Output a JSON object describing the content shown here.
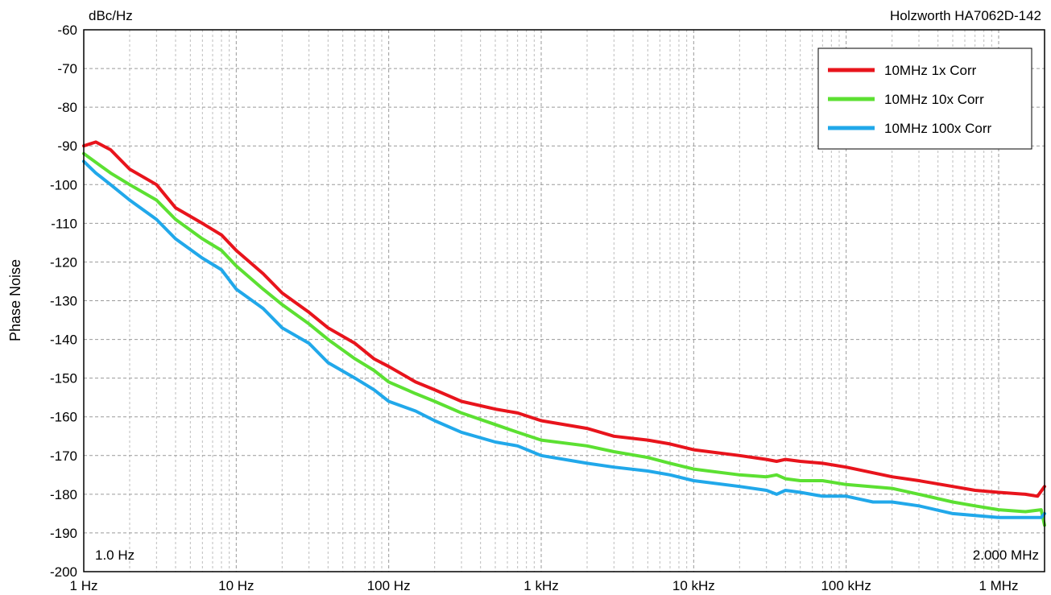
{
  "header": {
    "unit": "dBc/Hz",
    "instrument": "Holzworth HA7062D-142"
  },
  "annotations": {
    "start_freq": "1.0 Hz",
    "stop_freq": "2.000 MHz"
  },
  "chart_data": {
    "type": "line",
    "title": "",
    "xlabel": "",
    "ylabel": "Phase Noise",
    "x_scale": "log",
    "xlim": [
      1,
      2000000
    ],
    "ylim": [
      -200,
      -60
    ],
    "grid": true,
    "legend_position": "top-right",
    "x_ticks": [
      {
        "value": 1,
        "label": "1 Hz"
      },
      {
        "value": 10,
        "label": "10 Hz"
      },
      {
        "value": 100,
        "label": "100 Hz"
      },
      {
        "value": 1000,
        "label": "1 kHz"
      },
      {
        "value": 10000,
        "label": "10 kHz"
      },
      {
        "value": 100000,
        "label": "100 kHz"
      },
      {
        "value": 1000000,
        "label": "1 MHz"
      }
    ],
    "y_ticks": [
      -60,
      -70,
      -80,
      -90,
      -100,
      -110,
      -120,
      -130,
      -140,
      -150,
      -160,
      -170,
      -180,
      -190,
      -200
    ],
    "series": [
      {
        "name": "10MHz 1x Corr",
        "color": "#e8141c",
        "x": [
          1,
          1.2,
          1.5,
          2,
          3,
          4,
          6,
          8,
          10,
          15,
          20,
          30,
          40,
          60,
          80,
          100,
          150,
          200,
          300,
          500,
          700,
          1000,
          2000,
          3000,
          5000,
          7000,
          10000,
          20000,
          30000,
          35000,
          40000,
          50000,
          70000,
          100000,
          200000,
          300000,
          500000,
          700000,
          1000000,
          1500000,
          1800000,
          2000000
        ],
        "y": [
          -90,
          -89,
          -91,
          -96,
          -100,
          -106,
          -110,
          -113,
          -117,
          -123,
          -128,
          -133,
          -137,
          -141,
          -145,
          -147,
          -151,
          -153,
          -156,
          -158,
          -159,
          -161,
          -163,
          -165,
          -166,
          -167,
          -168.5,
          -170,
          -171,
          -171.5,
          -171,
          -171.5,
          -172,
          -173,
          -175.5,
          -176.5,
          -178,
          -179,
          -179.5,
          -180,
          -180.5,
          -178
        ]
      },
      {
        "name": "10MHz 10x Corr",
        "color": "#5ce032",
        "x": [
          1,
          1.5,
          2,
          3,
          4,
          6,
          8,
          10,
          15,
          20,
          30,
          40,
          60,
          80,
          100,
          150,
          200,
          300,
          500,
          700,
          1000,
          2000,
          3000,
          5000,
          7000,
          10000,
          20000,
          30000,
          35000,
          40000,
          50000,
          70000,
          100000,
          200000,
          300000,
          500000,
          700000,
          1000000,
          1500000,
          1900000,
          2000000
        ],
        "y": [
          -92,
          -97,
          -100,
          -104,
          -109,
          -114,
          -117,
          -121,
          -127,
          -131,
          -136,
          -140,
          -145,
          -148,
          -151,
          -154,
          -156,
          -159,
          -162,
          -164,
          -166,
          -167.5,
          -169,
          -170.5,
          -172,
          -173.5,
          -175,
          -175.5,
          -175,
          -176,
          -176.5,
          -176.5,
          -177.5,
          -178.5,
          -180,
          -182,
          -183,
          -184,
          -184.5,
          -184,
          -188
        ]
      },
      {
        "name": "10MHz 100x Corr",
        "color": "#21a8ea",
        "x": [
          1,
          1.2,
          1.5,
          2,
          3,
          4,
          6,
          8,
          10,
          15,
          20,
          30,
          40,
          60,
          80,
          100,
          150,
          200,
          300,
          500,
          700,
          1000,
          2000,
          3000,
          5000,
          7000,
          10000,
          20000,
          30000,
          35000,
          40000,
          50000,
          70000,
          100000,
          150000,
          200000,
          300000,
          500000,
          700000,
          1000000,
          1500000,
          1900000,
          2000000
        ],
        "y": [
          -94,
          -97,
          -100,
          -104,
          -109,
          -114,
          -119,
          -122,
          -127,
          -132,
          -137,
          -141,
          -146,
          -150,
          -153,
          -156,
          -158.5,
          -161,
          -164,
          -166.5,
          -167.5,
          -170,
          -172,
          -173,
          -174,
          -175,
          -176.5,
          -178,
          -179,
          -180,
          -179,
          -179.5,
          -180.5,
          -180.5,
          -182,
          -182,
          -183,
          -185,
          -185.5,
          -186,
          -186,
          -186,
          -185
        ]
      }
    ]
  }
}
